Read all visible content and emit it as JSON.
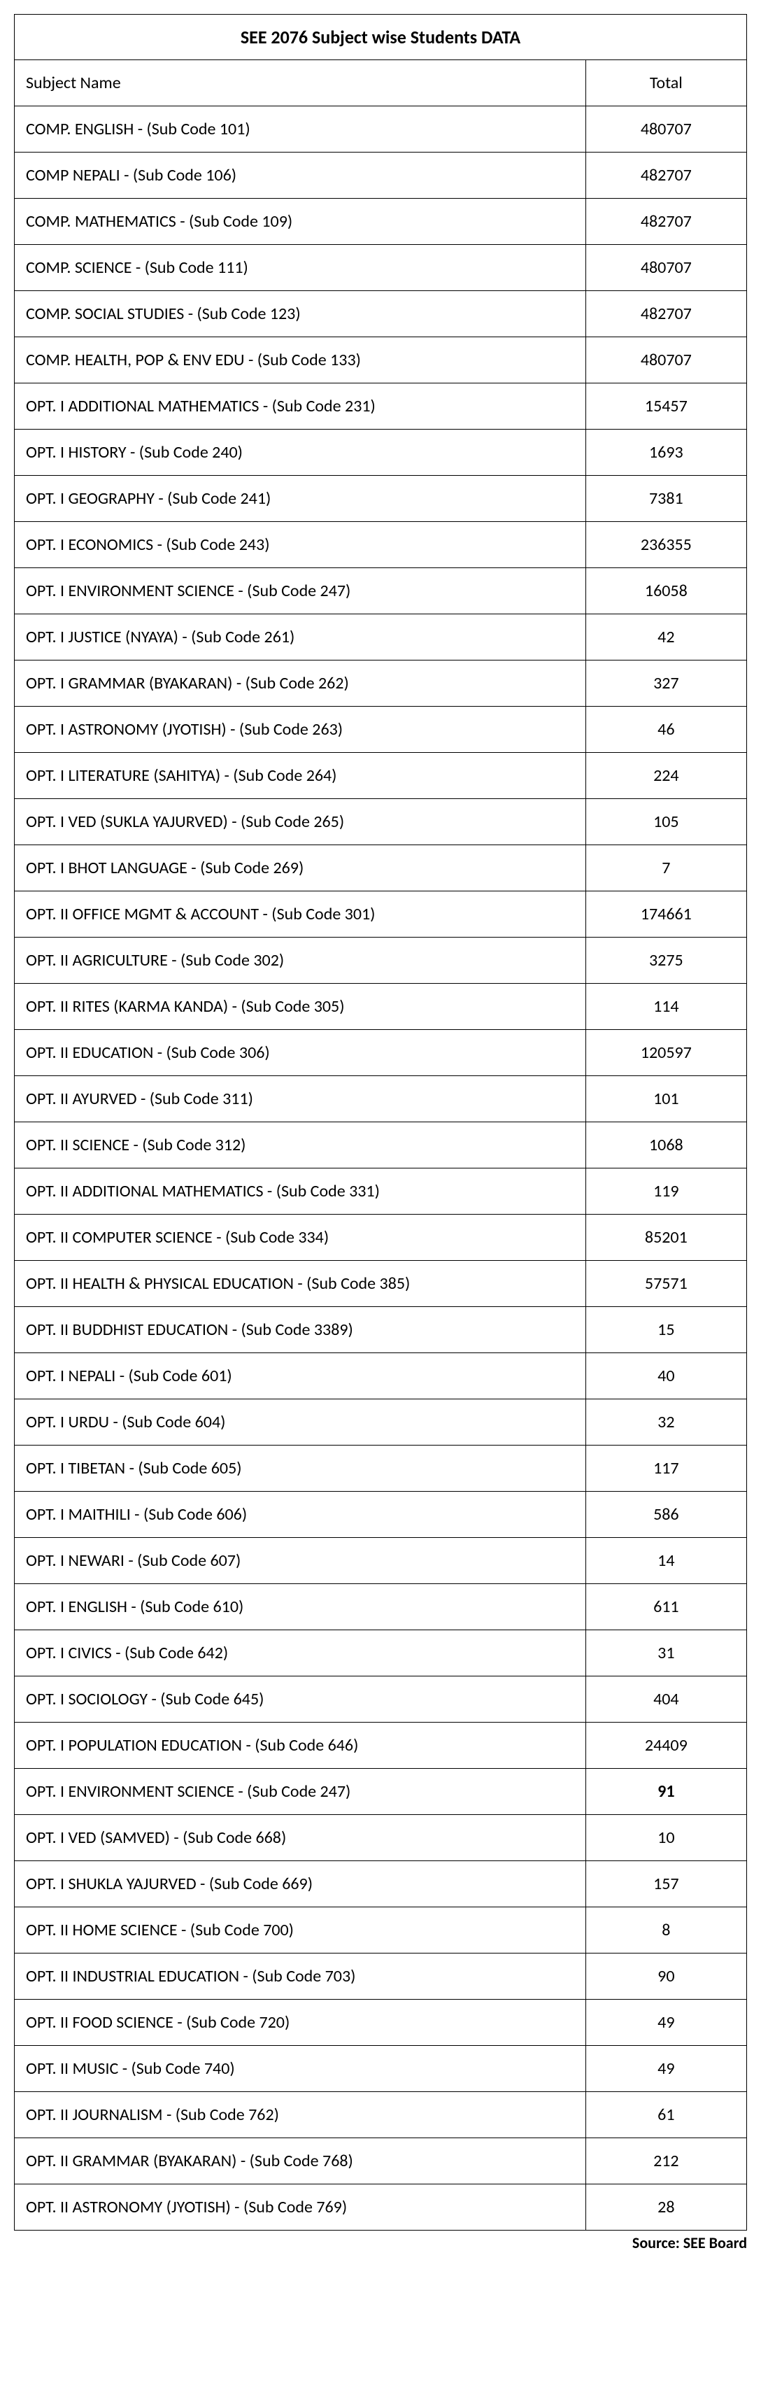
{
  "title": "SEE 2076 Subject wise Students DATA",
  "columns": [
    "Subject Name",
    "Total"
  ],
  "source_label": "Source: SEE Board",
  "table_style": {
    "border_color": "#000000",
    "background": "#ffffff",
    "text_color": "#000000",
    "title_fontsize": 26,
    "header_fontsize": 24,
    "cell_fontsize": 24,
    "col_widths_pct": [
      78,
      22
    ],
    "source_fontsize": 22
  },
  "rows": [
    {
      "subject": "COMP. ENGLISH - (Sub Code 101)",
      "total": "480707",
      "bold": false
    },
    {
      "subject": "COMP NEPALI - (Sub Code 106)",
      "total": "482707",
      "bold": false
    },
    {
      "subject": "COMP. MATHEMATICS - (Sub Code 109)",
      "total": "482707",
      "bold": false
    },
    {
      "subject": "COMP. SCIENCE - (Sub Code 111)",
      "total": "480707",
      "bold": false
    },
    {
      "subject": "COMP. SOCIAL STUDIES - (Sub Code 123)",
      "total": "482707",
      "bold": false
    },
    {
      "subject": "COMP. HEALTH, POP & ENV EDU - (Sub Code 133)",
      "total": "480707",
      "bold": false
    },
    {
      "subject": "OPT. I ADDITIONAL MATHEMATICS - (Sub Code 231)",
      "total": "15457",
      "bold": false
    },
    {
      "subject": "OPT. I HISTORY - (Sub Code 240)",
      "total": "1693",
      "bold": false
    },
    {
      "subject": "OPT. I GEOGRAPHY - (Sub Code 241)",
      "total": "7381",
      "bold": false
    },
    {
      "subject": "OPT. I ECONOMICS - (Sub Code 243)",
      "total": "236355",
      "bold": false
    },
    {
      "subject": "OPT. I ENVIRONMENT SCIENCE - (Sub Code 247)",
      "total": "16058",
      "bold": false
    },
    {
      "subject": "OPT. I JUSTICE (NYAYA) - (Sub Code 261)",
      "total": "42",
      "bold": false
    },
    {
      "subject": "OPT. I GRAMMAR (BYAKARAN) - (Sub Code 262)",
      "total": "327",
      "bold": false
    },
    {
      "subject": "OPT. I ASTRONOMY (JYOTISH) - (Sub Code 263)",
      "total": "46",
      "bold": false
    },
    {
      "subject": "OPT. I LITERATURE (SAHITYA) - (Sub Code 264)",
      "total": "224",
      "bold": false
    },
    {
      "subject": "OPT. I VED (SUKLA YAJURVED) - (Sub Code 265)",
      "total": "105",
      "bold": false
    },
    {
      "subject": "OPT. I BHOT LANGUAGE - (Sub Code 269)",
      "total": "7",
      "bold": false
    },
    {
      "subject": "OPT. II OFFICE MGMT & ACCOUNT - (Sub Code 301)",
      "total": "174661",
      "bold": false
    },
    {
      "subject": "OPT. II AGRICULTURE - (Sub Code 302)",
      "total": "3275",
      "bold": false
    },
    {
      "subject": "OPT. II RITES (KARMA KANDA) - (Sub Code 305)",
      "total": "114",
      "bold": false
    },
    {
      "subject": "OPT. II EDUCATION - (Sub Code 306)",
      "total": "120597",
      "bold": false
    },
    {
      "subject": "OPT. II AYURVED - (Sub Code 311)",
      "total": "101",
      "bold": false
    },
    {
      "subject": "OPT. II SCIENCE - (Sub Code 312)",
      "total": "1068",
      "bold": false
    },
    {
      "subject": "OPT. II ADDITIONAL MATHEMATICS - (Sub Code 331)",
      "total": "119",
      "bold": false
    },
    {
      "subject": "OPT. II COMPUTER SCIENCE - (Sub Code 334)",
      "total": "85201",
      "bold": false
    },
    {
      "subject": "OPT. II HEALTH & PHYSICAL EDUCATION - (Sub Code 385)",
      "total": "57571",
      "bold": false
    },
    {
      "subject": "OPT. II BUDDHIST EDUCATION - (Sub Code 3389)",
      "total": "15",
      "bold": false
    },
    {
      "subject": "OPT. I NEPALI - (Sub Code 601)",
      "total": "40",
      "bold": false
    },
    {
      "subject": "OPT. I URDU - (Sub Code 604)",
      "total": "32",
      "bold": false
    },
    {
      "subject": "OPT. I TIBETAN - (Sub Code 605)",
      "total": "117",
      "bold": false
    },
    {
      "subject": "OPT. I MAITHILI  - (Sub Code 606)",
      "total": "586",
      "bold": false
    },
    {
      "subject": "OPT. I NEWARI - (Sub Code 607)",
      "total": "14",
      "bold": false
    },
    {
      "subject": "OPT. I ENGLISH - (Sub Code 610)",
      "total": "611",
      "bold": false
    },
    {
      "subject": "OPT. I CIVICS - (Sub Code 642)",
      "total": "31",
      "bold": false
    },
    {
      "subject": "OPT. I SOCIOLOGY - (Sub Code 645)",
      "total": "404",
      "bold": false
    },
    {
      "subject": "OPT. I POPULATION EDUCATION - (Sub Code 646)",
      "total": "24409",
      "bold": false
    },
    {
      "subject": "OPT. I ENVIRONMENT SCIENCE - (Sub Code 247)",
      "total": "91",
      "bold": true
    },
    {
      "subject": "OPT. I VED (SAMVED) - (Sub Code 668)",
      "total": "10",
      "bold": false
    },
    {
      "subject": "OPT. I SHUKLA YAJURVED - (Sub Code 669)",
      "total": "157",
      "bold": false
    },
    {
      "subject": "OPT. II HOME SCIENCE - (Sub Code 700)",
      "total": "8",
      "bold": false
    },
    {
      "subject": "OPT. II INDUSTRIAL EDUCATION - (Sub Code 703)",
      "total": "90",
      "bold": false
    },
    {
      "subject": "OPT. II FOOD SCIENCE - (Sub Code 720)",
      "total": "49",
      "bold": false
    },
    {
      "subject": "OPT. II MUSIC - (Sub Code 740)",
      "total": "49",
      "bold": false
    },
    {
      "subject": "OPT. II JOURNALISM - (Sub Code 762)",
      "total": "61",
      "bold": false
    },
    {
      "subject": "OPT. II GRAMMAR (BYAKARAN) - (Sub Code 768)",
      "total": "212",
      "bold": false
    },
    {
      "subject": "OPT. II ASTRONOMY (JYOTISH) - (Sub Code 769)",
      "total": "28",
      "bold": false
    }
  ]
}
